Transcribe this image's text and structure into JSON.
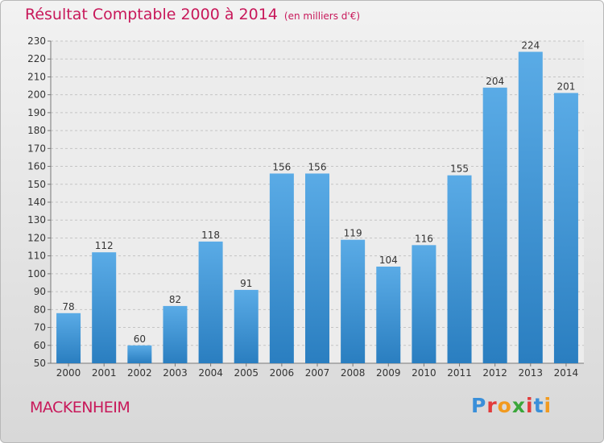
{
  "chart_data": {
    "type": "bar",
    "title": "Résultat Comptable 2000 à 2014",
    "subtitle": "(en milliers d'€)",
    "categories": [
      "2000",
      "2001",
      "2002",
      "2003",
      "2004",
      "2005",
      "2006",
      "2007",
      "2008",
      "2009",
      "2010",
      "2011",
      "2012",
      "2013",
      "2014"
    ],
    "values": [
      78,
      112,
      60,
      82,
      118,
      91,
      156,
      156,
      119,
      104,
      116,
      155,
      204,
      224,
      201
    ],
    "ylim": [
      50,
      230
    ],
    "yticks": [
      50,
      60,
      70,
      80,
      90,
      100,
      110,
      120,
      130,
      140,
      150,
      160,
      170,
      180,
      190,
      200,
      210,
      220,
      230
    ],
    "grid": true,
    "bar_color_top": "#5aabe6",
    "bar_color_bottom": "#2a7ec0"
  },
  "footer": {
    "place": "MACKENHEIM",
    "brand_letters": [
      "P",
      "r",
      "o",
      "x",
      "i",
      "t",
      "i"
    ],
    "brand_colors": [
      "#3a8fd9",
      "#e23b3b",
      "#f29a1f",
      "#3aa63a",
      "#e23b3b",
      "#3a8fd9",
      "#f29a1f"
    ]
  }
}
